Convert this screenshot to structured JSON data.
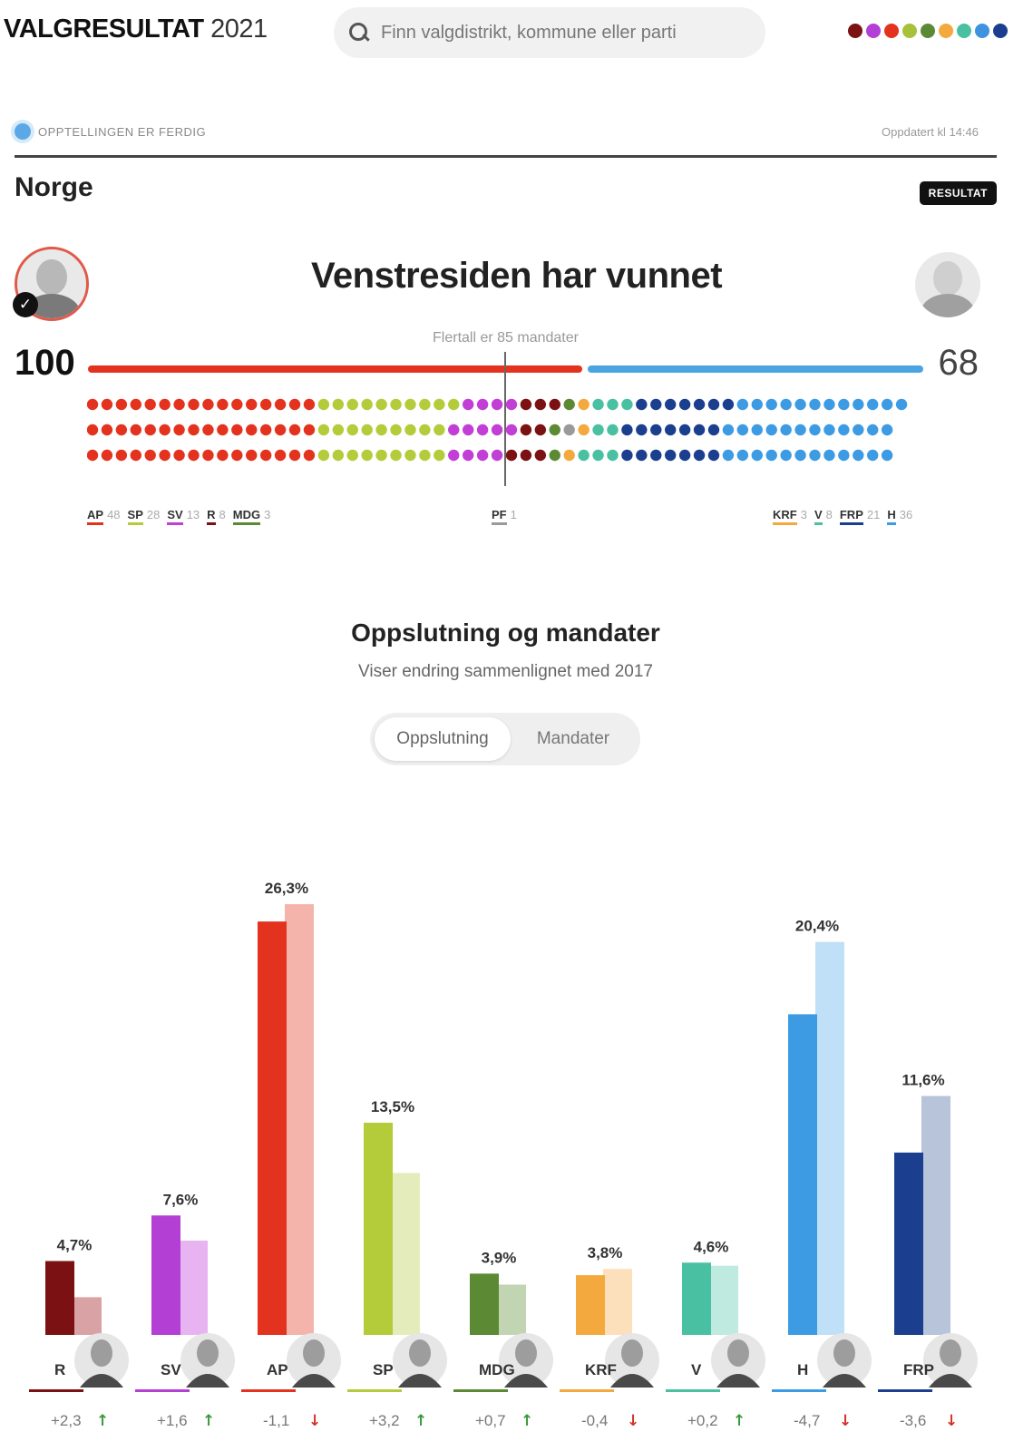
{
  "header": {
    "brand_bold": "VALGRESULTAT",
    "brand_year": "2021",
    "search_placeholder": "Finn valgdistrikt, kommune eller parti",
    "party_dots": [
      "#7b1113",
      "#b43fd4",
      "#e3331f",
      "#a7c13a",
      "#5c8a34",
      "#f3a93e",
      "#49c0a2",
      "#3d93df",
      "#1b3f8e"
    ]
  },
  "status": {
    "label": "OPPTELLINGEN ER FERDIG",
    "updated": "Oppdatert kl 14:46"
  },
  "place": "Norge",
  "badge": "RESULTAT",
  "headline": "Venstresiden har vunnet",
  "majority_label": "Flertall er 85 mandater",
  "left_total": "100",
  "right_total": "68",
  "seats": {
    "total": 169,
    "groups": [
      {
        "party": "AP",
        "count": 48,
        "color": "#e3331f"
      },
      {
        "party": "SP",
        "count": 28,
        "color": "#b4cb3a"
      },
      {
        "party": "SV",
        "count": 13,
        "color": "#c23fd6"
      },
      {
        "party": "R",
        "count": 8,
        "color": "#7b1113"
      },
      {
        "party": "MDG",
        "count": 3,
        "color": "#5c8a34"
      },
      {
        "party": "PF",
        "count": 1,
        "color": "#9a9a9a"
      },
      {
        "party": "KRF",
        "count": 3,
        "color": "#f3a93e"
      },
      {
        "party": "V",
        "count": 8,
        "color": "#49c0a2"
      },
      {
        "party": "FRP",
        "count": 21,
        "color": "#1b3f8e"
      },
      {
        "party": "H",
        "count": 36,
        "color": "#3d9be3"
      }
    ]
  },
  "legend_left": [
    {
      "label": "AP",
      "num": "48",
      "color": "#e3331f"
    },
    {
      "label": "SP",
      "num": "28",
      "color": "#b4cb3a"
    },
    {
      "label": "SV",
      "num": "13",
      "color": "#c23fd6"
    },
    {
      "label": "R",
      "num": "8",
      "color": "#7b1113"
    },
    {
      "label": "MDG",
      "num": "3",
      "color": "#5c8a34"
    }
  ],
  "legend_mid": [
    {
      "label": "PF",
      "num": "1",
      "color": "#9a9a9a"
    }
  ],
  "legend_right": [
    {
      "label": "KRF",
      "num": "3",
      "color": "#f3a93e"
    },
    {
      "label": "V",
      "num": "8",
      "color": "#49c0a2"
    },
    {
      "label": "FRP",
      "num": "21",
      "color": "#1b3f8e"
    },
    {
      "label": "H",
      "num": "36",
      "color": "#3d9be3"
    }
  ],
  "chart_section": {
    "title": "Oppslutning og mandater",
    "subtitle": "Viser endring sammenlignet med 2017",
    "toggle": [
      "Oppslutning",
      "Mandater"
    ]
  },
  "chart_data": {
    "type": "bar",
    "title": "Oppslutning og mandater",
    "subtitle": "Viser endring sammenlignet med 2017",
    "ylabel": "",
    "xlabel": "",
    "ylim": [
      0,
      30
    ],
    "categories": [
      "R",
      "SV",
      "AP",
      "SP",
      "MDG",
      "KRF",
      "V",
      "H",
      "FRP"
    ],
    "series": [
      {
        "name": "2021",
        "values": [
          4.7,
          7.6,
          26.3,
          13.5,
          3.9,
          3.8,
          4.6,
          20.4,
          11.6
        ]
      },
      {
        "name": "2017",
        "values": [
          2.4,
          6.0,
          27.4,
          10.3,
          3.2,
          4.2,
          4.4,
          25.0,
          15.2
        ]
      }
    ],
    "value_labels": [
      "4,7%",
      "7,6%",
      "26,3%",
      "13,5%",
      "3,9%",
      "3,8%",
      "4,6%",
      "20,4%",
      "11,6%"
    ],
    "change_labels": [
      "+2,3",
      "+1,6",
      "-1,1",
      "+3,2",
      "+0,7",
      "-0,4",
      "+0,2",
      "-4,7",
      "-3,6"
    ],
    "change_direction": [
      "up",
      "up",
      "down",
      "up",
      "up",
      "down",
      "up",
      "down",
      "down"
    ],
    "colors": [
      "#7b1113",
      "#b43fd4",
      "#e3331f",
      "#b4cb3a",
      "#5c8a34",
      "#f3a93e",
      "#49c0a2",
      "#3d9be3",
      "#1b3f8e"
    ],
    "colors_prev": [
      "#d9a3a5",
      "#e7b3f0",
      "#f4b4ab",
      "#e5ecbb",
      "#c2d5b3",
      "#fbe0bb",
      "#bfeae0",
      "#bfe0f6",
      "#b7c4da"
    ],
    "grid": false,
    "legend": "none"
  }
}
